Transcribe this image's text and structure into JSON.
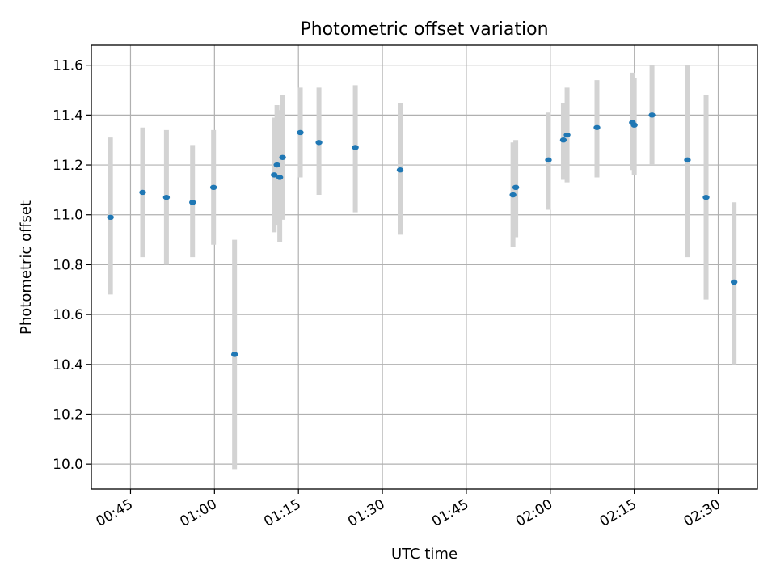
{
  "chart_data": {
    "type": "scatter",
    "title": "Photometric offset variation",
    "xlabel": "UTC time",
    "ylabel": "Photometric offset",
    "grid": true,
    "xlim": [
      "00:38",
      "02:37"
    ],
    "ylim": [
      9.9,
      11.68
    ],
    "x_ticks": [
      "00:45",
      "01:00",
      "01:15",
      "01:30",
      "01:45",
      "02:00",
      "02:15",
      "02:30"
    ],
    "y_ticks": [
      10.0,
      10.2,
      10.4,
      10.6,
      10.8,
      11.0,
      11.2,
      11.4,
      11.6
    ],
    "marker_color": "#1f77b4",
    "errorbar_color": "#d3d3d3",
    "points": [
      {
        "x": "00:41:25",
        "y": 10.99,
        "ylow": 10.68,
        "yhigh": 11.31
      },
      {
        "x": "00:47:10",
        "y": 11.09,
        "ylow": 10.83,
        "yhigh": 11.35
      },
      {
        "x": "00:51:25",
        "y": 11.07,
        "ylow": 10.8,
        "yhigh": 11.34
      },
      {
        "x": "00:56:05",
        "y": 11.05,
        "ylow": 10.83,
        "yhigh": 11.28
      },
      {
        "x": "00:59:50",
        "y": 11.11,
        "ylow": 10.88,
        "yhigh": 11.34
      },
      {
        "x": "01:03:35",
        "y": 10.44,
        "ylow": 9.98,
        "yhigh": 10.9
      },
      {
        "x": "01:10:40",
        "y": 11.16,
        "ylow": 10.93,
        "yhigh": 11.39
      },
      {
        "x": "01:11:10",
        "y": 11.2,
        "ylow": 10.96,
        "yhigh": 11.44
      },
      {
        "x": "01:11:40",
        "y": 11.15,
        "ylow": 10.89,
        "yhigh": 11.42
      },
      {
        "x": "01:12:10",
        "y": 11.23,
        "ylow": 10.98,
        "yhigh": 11.48
      },
      {
        "x": "01:15:20",
        "y": 11.33,
        "ylow": 11.15,
        "yhigh": 11.51
      },
      {
        "x": "01:18:40",
        "y": 11.29,
        "ylow": 11.08,
        "yhigh": 11.51
      },
      {
        "x": "01:25:10",
        "y": 11.27,
        "ylow": 11.01,
        "yhigh": 11.52
      },
      {
        "x": "01:33:10",
        "y": 11.18,
        "ylow": 10.92,
        "yhigh": 11.45
      },
      {
        "x": "01:53:20",
        "y": 11.08,
        "ylow": 10.87,
        "yhigh": 11.29
      },
      {
        "x": "01:53:50",
        "y": 11.11,
        "ylow": 10.91,
        "yhigh": 11.3
      },
      {
        "x": "01:59:40",
        "y": 11.22,
        "ylow": 11.02,
        "yhigh": 11.41
      },
      {
        "x": "02:02:20",
        "y": 11.3,
        "ylow": 11.14,
        "yhigh": 11.45
      },
      {
        "x": "02:03:00",
        "y": 11.32,
        "ylow": 11.13,
        "yhigh": 11.51
      },
      {
        "x": "02:08:20",
        "y": 11.35,
        "ylow": 11.15,
        "yhigh": 11.54
      },
      {
        "x": "02:14:40",
        "y": 11.37,
        "ylow": 11.18,
        "yhigh": 11.57
      },
      {
        "x": "02:15:00",
        "y": 11.36,
        "ylow": 11.16,
        "yhigh": 11.55
      },
      {
        "x": "02:18:10",
        "y": 11.4,
        "ylow": 11.2,
        "yhigh": 11.6
      },
      {
        "x": "02:24:30",
        "y": 11.22,
        "ylow": 10.83,
        "yhigh": 11.6
      },
      {
        "x": "02:27:50",
        "y": 11.07,
        "ylow": 10.66,
        "yhigh": 11.48
      },
      {
        "x": "02:32:50",
        "y": 10.73,
        "ylow": 10.4,
        "yhigh": 11.05
      }
    ]
  }
}
